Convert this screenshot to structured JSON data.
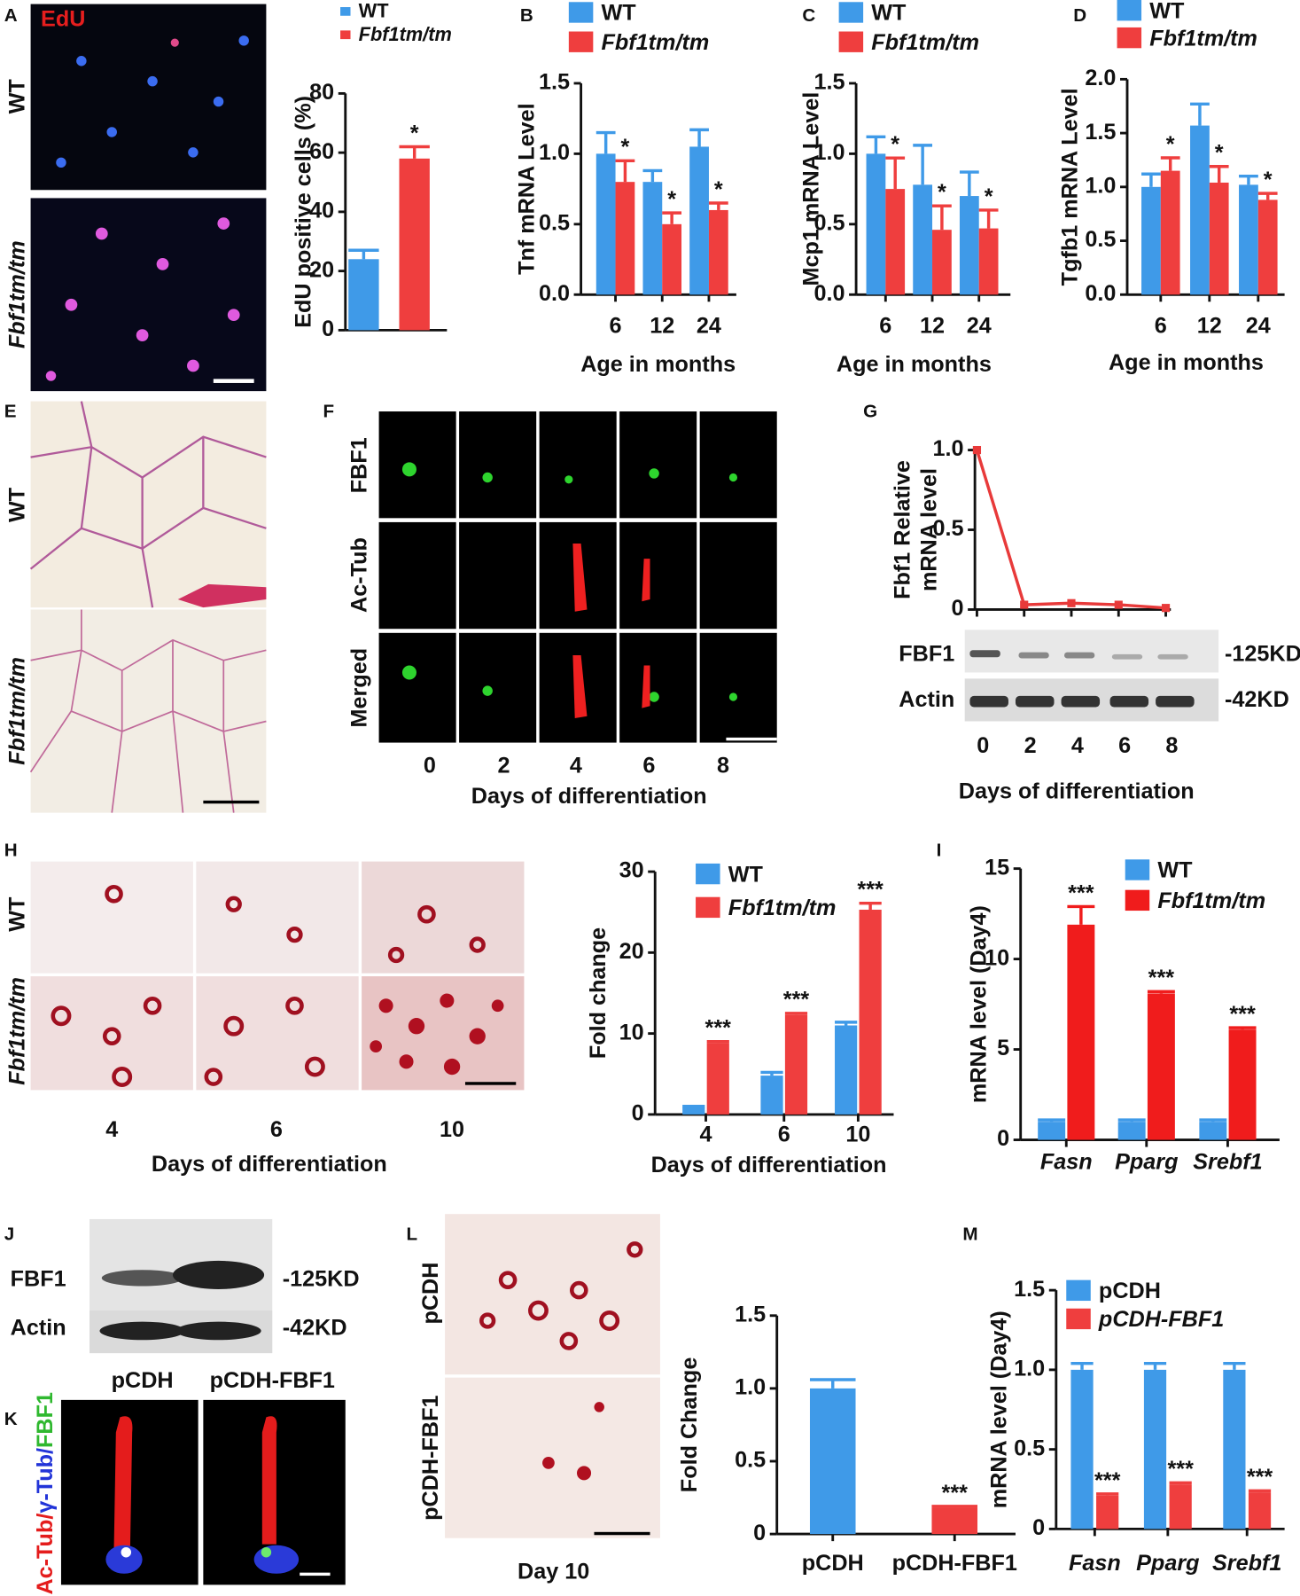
{
  "panel_labels": [
    "A",
    "B",
    "C",
    "D",
    "E",
    "F",
    "G",
    "H",
    "I",
    "J",
    "K",
    "L",
    "M"
  ],
  "chart_data": [
    {
      "type": "bar",
      "ylabel": "EdU positive cells (%)",
      "categories": [
        null
      ],
      "ylim": [
        0,
        80
      ],
      "yticks": [
        0,
        20,
        40,
        60,
        80
      ],
      "series": [
        {
          "name": "WT",
          "color": "#3f9ae8",
          "values": [
            24
          ],
          "errors": [
            3
          ]
        },
        {
          "name": "Fbf1tm/tm",
          "color": "#ef3e3e",
          "values": [
            58
          ],
          "errors": [
            4
          ],
          "annotations": [
            "*"
          ]
        }
      ]
    },
    {
      "type": "bar",
      "ylabel": "Tnf mRNA Level",
      "xlabel": "Age in months",
      "categories": [
        6,
        12,
        24
      ],
      "ylim": [
        0,
        1.5
      ],
      "yticks": [
        {
          "value": 0,
          "label": "0.0"
        },
        0.5,
        {
          "value": 1,
          "label": "1.0"
        },
        1.5
      ],
      "series": [
        {
          "name": "WT",
          "color": "#3f9ae8",
          "values": [
            1.0,
            0.8,
            1.05
          ],
          "errors": [
            0.15,
            0.08,
            0.12
          ]
        },
        {
          "name": "Fbf1tm/tm",
          "color": "#ef3e3e",
          "values": [
            0.8,
            0.5,
            0.6
          ],
          "errors": [
            0.15,
            0.08,
            0.05
          ],
          "annotations": [
            "*",
            "*",
            "*"
          ]
        }
      ]
    },
    {
      "type": "bar",
      "ylabel": "Mcp1 mRNA Level",
      "xlabel": "Age in months",
      "categories": [
        6,
        12,
        24
      ],
      "ylim": [
        0,
        1.5
      ],
      "yticks": [
        {
          "value": 0,
          "label": "0.0"
        },
        0.5,
        {
          "value": 1,
          "label": "1.0"
        },
        1.5
      ],
      "series": [
        {
          "name": "WT",
          "color": "#3f9ae8",
          "values": [
            1.0,
            0.78,
            0.7
          ],
          "errors": [
            0.12,
            0.28,
            0.17
          ]
        },
        {
          "name": "Fbf1tm/tm",
          "color": "#ef3e3e",
          "values": [
            0.75,
            0.46,
            0.47
          ],
          "errors": [
            0.22,
            0.17,
            0.13
          ],
          "annotations": [
            "*",
            "*",
            "*"
          ]
        }
      ]
    },
    {
      "type": "bar",
      "ylabel": "Tgfb1 mRNA Level",
      "xlabel": "Age in months",
      "categories": [
        6,
        12,
        24
      ],
      "ylim": [
        0,
        2
      ],
      "yticks": [
        {
          "value": 0,
          "label": "0.0"
        },
        0.5,
        {
          "value": 1,
          "label": "1.0"
        },
        1.5,
        {
          "value": 2,
          "label": "2.0"
        }
      ],
      "series": [
        {
          "name": "WT",
          "color": "#3f9ae8",
          "values": [
            1.0,
            1.57,
            1.02
          ],
          "errors": [
            0.12,
            0.2,
            0.08
          ]
        },
        {
          "name": "Fbf1tm/tm",
          "color": "#ef3e3e",
          "values": [
            1.15,
            1.04,
            0.88
          ],
          "errors": [
            0.12,
            0.15,
            0.06
          ],
          "annotations": [
            "*",
            "*",
            "*"
          ]
        }
      ]
    },
    {
      "type": "line",
      "ylabel": [
        "Fbf1 Relative",
        "mRNA level"
      ],
      "xlabel": "Days of differentiation",
      "x": [
        0,
        2,
        4,
        6,
        8
      ],
      "values": [
        1.0,
        0.03,
        0.04,
        0.03,
        0.01
      ],
      "color": "#e83a3a",
      "xlim": [
        0,
        8
      ],
      "xticks": [
        0,
        2,
        4,
        6,
        8
      ],
      "ylim": [
        0,
        1
      ],
      "yticks": [
        0,
        0.5,
        {
          "value": 1,
          "label": "1.0"
        }
      ]
    },
    {
      "type": "bar",
      "ylabel": "Fold change",
      "xlabel": "Days of differentiation",
      "categories": [
        4,
        6,
        10
      ],
      "ylim": [
        0,
        30
      ],
      "yticks": [
        0,
        10,
        20,
        30
      ],
      "series": [
        {
          "name": "WT",
          "color": "#3f9ae8",
          "values": [
            0.9,
            4.8,
            11.0
          ],
          "errors": [
            0.1,
            0.4,
            0.4
          ]
        },
        {
          "name": "Fbf1tm/tm",
          "color": "#ef3e3e",
          "values": [
            8.8,
            12.3,
            25.3
          ],
          "errors": [
            0.2,
            0.2,
            0.8
          ],
          "annotations": [
            "***",
            "***",
            "***"
          ]
        }
      ]
    },
    {
      "type": "bar",
      "ylabel": "mRNA level (Day4)",
      "categories": [
        "Fasn",
        "Pparg",
        "Srebf1"
      ],
      "ylim": [
        0,
        15
      ],
      "yticks": [
        0,
        5,
        10,
        15
      ],
      "series": [
        {
          "name": "WT",
          "color": "#3f9ae8",
          "values": [
            1,
            1,
            1
          ],
          "errors": [
            0.1,
            0.1,
            0.1
          ]
        },
        {
          "name": "Fbf1tm/tm",
          "color": "#f01c1c",
          "values": [
            11.9,
            8.1,
            6.1
          ],
          "errors": [
            1.0,
            0.1,
            0.1
          ],
          "annotations": [
            "***",
            "***",
            "***"
          ]
        }
      ]
    },
    {
      "type": "bar",
      "ylabel": "Fold Change",
      "categories": [
        "pCDH",
        "pCDH-FBF1"
      ],
      "ylim": [
        0,
        1.5
      ],
      "yticks": [
        0,
        0.5,
        {
          "value": 1,
          "label": "1.0"
        },
        1.5
      ],
      "series": [
        {
          "colors": [
            "#3f9ae8",
            "#ef3e3e"
          ],
          "values": [
            1.0,
            0.18
          ],
          "errors": [
            0.06,
            0.01
          ],
          "annotations": [
            null,
            "***"
          ]
        }
      ]
    },
    {
      "type": "bar",
      "ylabel": "mRNA level (Day4)",
      "categories": [
        "Fasn",
        "Pparg",
        "Srebf1"
      ],
      "ylim": [
        0,
        1.5
      ],
      "yticks": [
        0,
        0.5,
        {
          "value": 1,
          "label": "1.0"
        },
        1.5
      ],
      "series": [
        {
          "name": "pCDH",
          "color": "#3f9ae8",
          "values": [
            1,
            1,
            1
          ],
          "errors": [
            0.04,
            0.04,
            0.04
          ]
        },
        {
          "name": "pCDH-FBF1",
          "color": "#ef3e3e",
          "values": [
            0.21,
            0.28,
            0.23
          ],
          "errors": [
            0.01,
            0.01,
            0.01
          ],
          "annotations": [
            "***",
            "***",
            "***"
          ]
        }
      ]
    }
  ],
  "images": {
    "A": {
      "label": "EdU",
      "rows": [
        "WT",
        "Fbf1tm/tm"
      ]
    },
    "E": {
      "rows": [
        "WT",
        "Fbf1tm/tm"
      ]
    },
    "F": {
      "rows": [
        "FBF1",
        "Ac-Tub",
        "Merged"
      ]
    },
    "G": {
      "rows": [
        "FBF1",
        "Actin"
      ],
      "sizes": [
        "-125KD",
        "-42KD"
      ]
    },
    "H": {
      "rows": [
        "WT",
        "Fbf1tm/tm"
      ]
    },
    "J": {
      "rows": [
        "FBF1",
        "Actin"
      ],
      "sizes": [
        "-125KD",
        "-42KD"
      ],
      "columns": [
        "pCDH",
        "pCDH-FBF1"
      ]
    },
    "K": {
      "label": [
        "Ac-Tub/",
        "γ-Tub/",
        "FBF1"
      ]
    },
    "L": {
      "rows": [
        "pCDH",
        "pCDH-FBF1"
      ],
      "caption": "Day 10"
    }
  },
  "f_columns": [
    0,
    2,
    4,
    6,
    8
  ],
  "f_xlabel": "Days of differentiation",
  "h_columns": [
    4,
    6,
    10
  ],
  "h_xlabel": "Days of differentiation"
}
